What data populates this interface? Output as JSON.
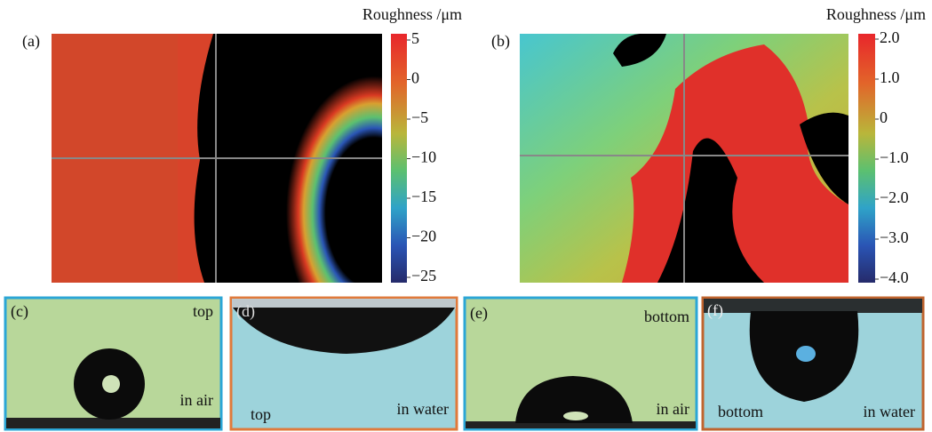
{
  "panels": {
    "a": {
      "label": "(a)",
      "colorbar_title": "Roughness /μm",
      "colorbar_ticks": [
        "5",
        "0",
        "−5",
        "−10",
        "−15",
        "−20",
        "−25"
      ]
    },
    "b": {
      "label": "(b)",
      "colorbar_title": "Roughness /μm",
      "colorbar_ticks": [
        "2.0",
        "1.0",
        "0",
        "−1.0",
        "−2.0",
        "−3.0",
        "−4.0"
      ]
    },
    "c": {
      "label": "(c)",
      "texts": [
        "top",
        "in air"
      ]
    },
    "d": {
      "label": "(d)",
      "texts": [
        "top",
        "in water"
      ]
    },
    "e": {
      "label": "(e)",
      "texts": [
        "bottom",
        "in air"
      ]
    },
    "f": {
      "label": "(f)",
      "texts": [
        "bottom",
        "in water"
      ]
    }
  }
}
